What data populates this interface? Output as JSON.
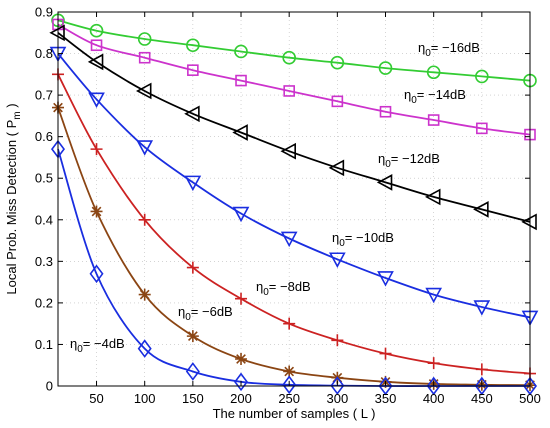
{
  "chart_data": {
    "type": "line",
    "xlabel": "The number of samples ( L )",
    "ylabel": "Local Prob. Miss Detection ( P",
    "ylabel_sub": "m",
    "ylabel_close": " )",
    "xlim": [
      10,
      500
    ],
    "ylim": [
      0,
      0.9
    ],
    "xticks": [
      50,
      100,
      150,
      200,
      250,
      300,
      350,
      400,
      450,
      500
    ],
    "yticks": [
      0,
      0.1,
      0.2,
      0.3,
      0.4,
      0.5,
      0.6,
      0.7,
      0.8,
      0.9
    ],
    "ytick_labels": [
      "0",
      "0.1",
      "0.2",
      "0.3",
      "0.4",
      "0.5",
      "0.6",
      "0.7",
      "0.8",
      "0.9"
    ],
    "grid": true,
    "series": [
      {
        "label_prefix": "η",
        "label_sub": "0",
        "label_value": "= −16dB",
        "color": "#33cc33",
        "marker": "circle",
        "x": [
          10,
          50,
          100,
          150,
          200,
          250,
          300,
          350,
          400,
          450,
          500
        ],
        "y": [
          0.88,
          0.855,
          0.835,
          0.82,
          0.805,
          0.79,
          0.778,
          0.765,
          0.755,
          0.745,
          0.735
        ]
      },
      {
        "label_prefix": "η",
        "label_sub": "0",
        "label_value": "= −14dB",
        "color": "#cc33cc",
        "marker": "square",
        "x": [
          10,
          50,
          100,
          150,
          200,
          250,
          300,
          350,
          400,
          450,
          500
        ],
        "y": [
          0.87,
          0.82,
          0.79,
          0.76,
          0.735,
          0.71,
          0.685,
          0.66,
          0.64,
          0.62,
          0.605
        ]
      },
      {
        "label_prefix": "η",
        "label_sub": "0",
        "label_value": "= −12dB",
        "color": "#000000",
        "marker": "triangle-left",
        "x": [
          10,
          50,
          100,
          150,
          200,
          250,
          300,
          350,
          400,
          450,
          500
        ],
        "y": [
          0.85,
          0.78,
          0.71,
          0.655,
          0.61,
          0.565,
          0.525,
          0.49,
          0.455,
          0.425,
          0.395
        ]
      },
      {
        "label_prefix": "η",
        "label_sub": "0",
        "label_value": "= −10dB",
        "color": "#1a2ee0",
        "marker": "triangle-down",
        "x": [
          10,
          50,
          100,
          150,
          200,
          250,
          300,
          350,
          400,
          450,
          500
        ],
        "y": [
          0.8,
          0.69,
          0.575,
          0.49,
          0.415,
          0.355,
          0.305,
          0.26,
          0.22,
          0.19,
          0.165
        ]
      },
      {
        "label_prefix": "η",
        "label_sub": "0",
        "label_value": "= −8dB",
        "color": "#cc2222",
        "marker": "plus",
        "x": [
          10,
          50,
          100,
          150,
          200,
          250,
          300,
          350,
          400,
          450,
          500
        ],
        "y": [
          0.75,
          0.57,
          0.4,
          0.285,
          0.21,
          0.15,
          0.11,
          0.078,
          0.055,
          0.04,
          0.03
        ]
      },
      {
        "label_prefix": "η",
        "label_sub": "0",
        "label_value": "= −6dB",
        "color": "#8b4513",
        "marker": "asterisk",
        "x": [
          10,
          50,
          100,
          150,
          200,
          250,
          300,
          350,
          400,
          450,
          500
        ],
        "y": [
          0.67,
          0.42,
          0.22,
          0.12,
          0.065,
          0.035,
          0.02,
          0.01,
          0.005,
          0.003,
          0.002
        ]
      },
      {
        "label_prefix": "η",
        "label_sub": "0",
        "label_value": "= −4dB",
        "color": "#1a2ee0",
        "marker": "diamond",
        "x": [
          10,
          50,
          100,
          150,
          200,
          250,
          300,
          350,
          400,
          450,
          500
        ],
        "y": [
          0.57,
          0.27,
          0.09,
          0.035,
          0.01,
          0.003,
          0.001,
          0.0,
          0.0,
          0.0,
          0.0
        ]
      }
    ]
  }
}
